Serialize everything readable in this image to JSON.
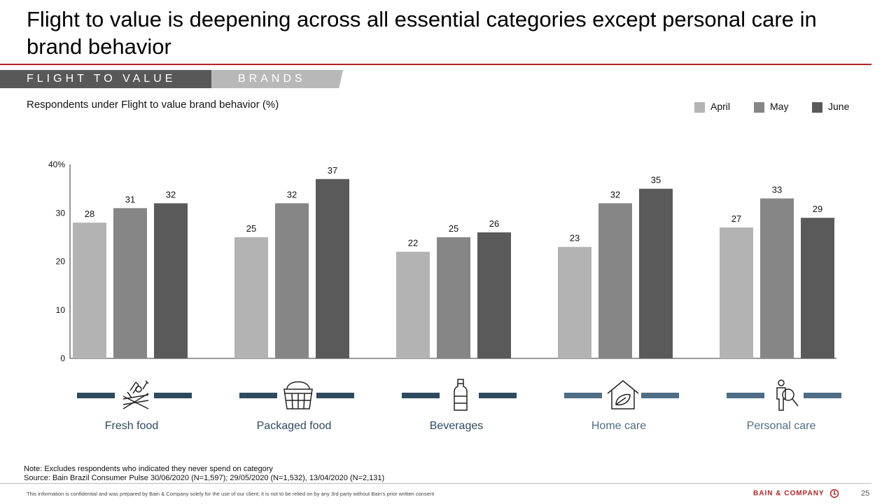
{
  "header": {
    "title": "Flight to value is deepening across all essential categories except personal care in brand behavior"
  },
  "tabs": [
    {
      "label": "FLIGHT TO VALUE",
      "active": true
    },
    {
      "label": "BRANDS",
      "active": false
    }
  ],
  "subtitle": "Respondents under Flight to value brand behavior (%)",
  "legend": [
    {
      "name": "April",
      "color": "#b3b3b3"
    },
    {
      "name": "May",
      "color": "#868686"
    },
    {
      "name": "June",
      "color": "#5a5a5a"
    }
  ],
  "chart_data": {
    "type": "bar",
    "categories": [
      "Fresh food",
      "Packaged food",
      "Beverages",
      "Home care",
      "Personal care"
    ],
    "series": [
      {
        "name": "April",
        "values": [
          28,
          25,
          22,
          23,
          27
        ],
        "color": "#b3b3b3"
      },
      {
        "name": "May",
        "values": [
          31,
          32,
          25,
          32,
          33
        ],
        "color": "#868686"
      },
      {
        "name": "June",
        "values": [
          32,
          37,
          26,
          35,
          29
        ],
        "color": "#5a5a5a"
      }
    ],
    "ylim": [
      0,
      40
    ],
    "yticks": [
      0,
      10,
      20,
      30,
      40
    ],
    "ytick_labels": [
      "0",
      "10",
      "20",
      "30",
      "40%"
    ],
    "legend_position": "top-right",
    "grid": false
  },
  "categories_row": [
    {
      "label": "Fresh food",
      "icon": "fresh-food-icon",
      "color": "#2e4a5e"
    },
    {
      "label": "Packaged food",
      "icon": "basket-icon",
      "color": "#2e4a5e"
    },
    {
      "label": "Beverages",
      "icon": "bottle-icon",
      "color": "#2e4a5e"
    },
    {
      "label": "Home care",
      "icon": "home-leaf-icon",
      "color": "#4f6e86"
    },
    {
      "label": "Personal care",
      "icon": "person-search-icon",
      "color": "#4f6e86"
    }
  ],
  "notes": {
    "note": "Note: Excludes respondents who indicated they never spend on category",
    "source": "Source: Bain Brazil Consumer Pulse 30/06/2020 (N=1,597); 29/05/2020 (N=1,532), 13/04/2020 (N=2,131)"
  },
  "footer": {
    "confidential": "This information is confidential and was prepared by Bain & Company solely for the use of our client; it is not to be relied on by any 3rd party without Bain's prior written consent",
    "logo_text": "BAIN & COMPANY",
    "page_number": "25"
  }
}
